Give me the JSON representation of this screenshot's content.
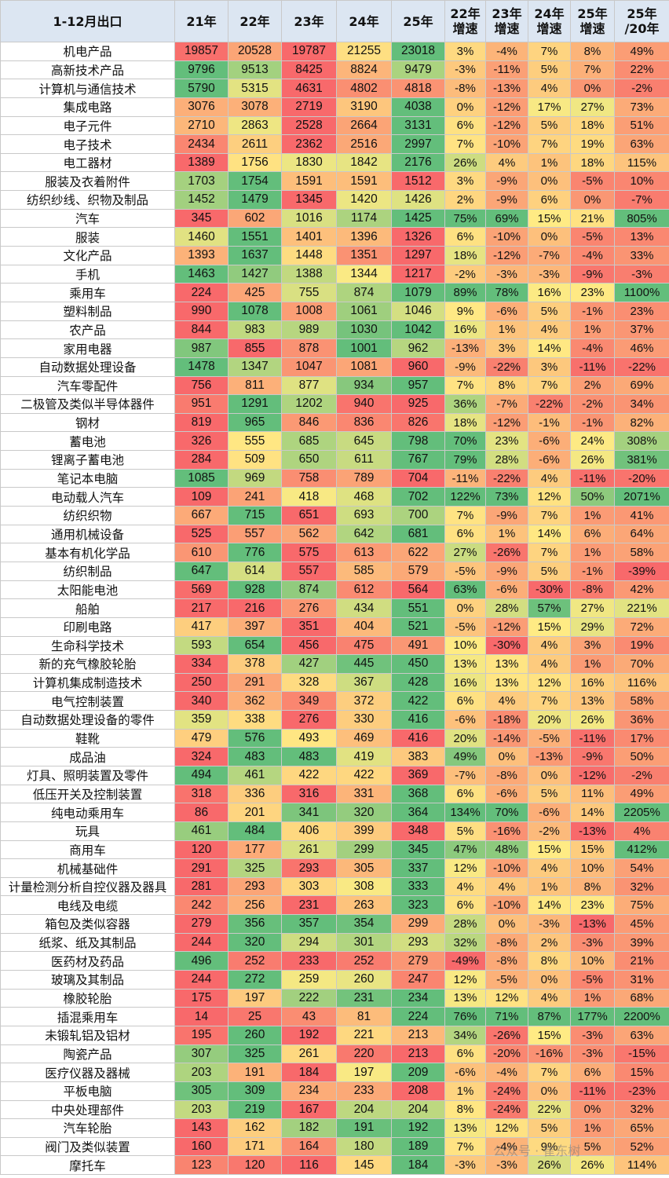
{
  "headers": [
    "1-12月出口",
    "21年",
    "22年",
    "23年",
    "24年",
    "25年",
    "22年\n增速",
    "23年\n增速",
    "24年\n增速",
    "25年\n增速",
    "25年\n/20年"
  ],
  "rows": [
    [
      "机电产品",
      "19857",
      "20528",
      "19787",
      "21255",
      "23018",
      "3%",
      "-4%",
      "7%",
      "8%",
      "49%"
    ],
    [
      "高新技术产品",
      "9796",
      "9513",
      "8425",
      "8824",
      "9479",
      "-3%",
      "-11%",
      "5%",
      "7%",
      "22%"
    ],
    [
      "计算机与通信技术",
      "5790",
      "5315",
      "4631",
      "4802",
      "4818",
      "-8%",
      "-13%",
      "4%",
      "0%",
      "-2%"
    ],
    [
      "集成电路",
      "3076",
      "3078",
      "2719",
      "3190",
      "4038",
      "0%",
      "-12%",
      "17%",
      "27%",
      "73%"
    ],
    [
      "电子元件",
      "2710",
      "2863",
      "2528",
      "2664",
      "3131",
      "6%",
      "-12%",
      "5%",
      "18%",
      "51%"
    ],
    [
      "电子技术",
      "2434",
      "2611",
      "2362",
      "2516",
      "2997",
      "7%",
      "-10%",
      "7%",
      "19%",
      "63%"
    ],
    [
      "电工器材",
      "1389",
      "1756",
      "1830",
      "1842",
      "2176",
      "26%",
      "4%",
      "1%",
      "18%",
      "115%"
    ],
    [
      "服装及衣着附件",
      "1703",
      "1754",
      "1591",
      "1591",
      "1512",
      "3%",
      "-9%",
      "0%",
      "-5%",
      "10%"
    ],
    [
      "纺织纱线、织物及制品",
      "1452",
      "1479",
      "1345",
      "1420",
      "1426",
      "2%",
      "-9%",
      "6%",
      "0%",
      "-7%"
    ],
    [
      "汽车",
      "345",
      "602",
      "1016",
      "1174",
      "1425",
      "75%",
      "69%",
      "15%",
      "21%",
      "805%"
    ],
    [
      "服装",
      "1460",
      "1551",
      "1401",
      "1396",
      "1326",
      "6%",
      "-10%",
      "0%",
      "-5%",
      "13%"
    ],
    [
      "文化产品",
      "1393",
      "1637",
      "1448",
      "1351",
      "1297",
      "18%",
      "-12%",
      "-7%",
      "-4%",
      "33%"
    ],
    [
      "手机",
      "1463",
      "1427",
      "1388",
      "1344",
      "1217",
      "-2%",
      "-3%",
      "-3%",
      "-9%",
      "-3%"
    ],
    [
      "乘用车",
      "224",
      "425",
      "755",
      "874",
      "1079",
      "89%",
      "78%",
      "16%",
      "23%",
      "1100%"
    ],
    [
      "塑料制品",
      "990",
      "1078",
      "1008",
      "1061",
      "1046",
      "9%",
      "-6%",
      "5%",
      "-1%",
      "23%"
    ],
    [
      "农产品",
      "844",
      "983",
      "989",
      "1030",
      "1042",
      "16%",
      "1%",
      "4%",
      "1%",
      "37%"
    ],
    [
      "家用电器",
      "987",
      "855",
      "878",
      "1001",
      "962",
      "-13%",
      "3%",
      "14%",
      "-4%",
      "46%"
    ],
    [
      "自动数据处理设备",
      "1478",
      "1347",
      "1047",
      "1081",
      "960",
      "-9%",
      "-22%",
      "3%",
      "-11%",
      "-22%"
    ],
    [
      "汽车零配件",
      "756",
      "811",
      "877",
      "934",
      "957",
      "7%",
      "8%",
      "7%",
      "2%",
      "69%"
    ],
    [
      "二极管及类似半导体器件",
      "951",
      "1291",
      "1202",
      "940",
      "925",
      "36%",
      "-7%",
      "-22%",
      "-2%",
      "34%"
    ],
    [
      "钢材",
      "819",
      "965",
      "846",
      "836",
      "826",
      "18%",
      "-12%",
      "-1%",
      "-1%",
      "82%"
    ],
    [
      "蓄电池",
      "326",
      "555",
      "685",
      "645",
      "798",
      "70%",
      "23%",
      "-6%",
      "24%",
      "308%"
    ],
    [
      "锂离子蓄电池",
      "284",
      "509",
      "650",
      "611",
      "767",
      "79%",
      "28%",
      "-6%",
      "26%",
      "381%"
    ],
    [
      "笔记本电脑",
      "1085",
      "969",
      "758",
      "789",
      "704",
      "-11%",
      "-22%",
      "4%",
      "-11%",
      "-20%"
    ],
    [
      "电动载人汽车",
      "109",
      "241",
      "418",
      "468",
      "702",
      "122%",
      "73%",
      "12%",
      "50%",
      "2071%"
    ],
    [
      "纺织织物",
      "667",
      "715",
      "651",
      "693",
      "700",
      "7%",
      "-9%",
      "7%",
      "1%",
      "41%"
    ],
    [
      "通用机械设备",
      "525",
      "557",
      "562",
      "642",
      "681",
      "6%",
      "1%",
      "14%",
      "6%",
      "64%"
    ],
    [
      "基本有机化学品",
      "610",
      "776",
      "575",
      "613",
      "622",
      "27%",
      "-26%",
      "7%",
      "1%",
      "58%"
    ],
    [
      "纺织制品",
      "647",
      "614",
      "557",
      "585",
      "579",
      "-5%",
      "-9%",
      "5%",
      "-1%",
      "-39%"
    ],
    [
      "太阳能电池",
      "569",
      "928",
      "874",
      "612",
      "564",
      "63%",
      "-6%",
      "-30%",
      "-8%",
      "42%"
    ],
    [
      "船舶",
      "217",
      "216",
      "276",
      "434",
      "551",
      "0%",
      "28%",
      "57%",
      "27%",
      "221%"
    ],
    [
      "印刷电路",
      "417",
      "397",
      "351",
      "404",
      "521",
      "-5%",
      "-12%",
      "15%",
      "29%",
      "72%"
    ],
    [
      "生命科学技术",
      "593",
      "654",
      "456",
      "475",
      "491",
      "10%",
      "-30%",
      "4%",
      "3%",
      "19%"
    ],
    [
      "新的充气橡胶轮胎",
      "334",
      "378",
      "427",
      "445",
      "450",
      "13%",
      "13%",
      "4%",
      "1%",
      "70%"
    ],
    [
      "计算机集成制造技术",
      "250",
      "291",
      "328",
      "367",
      "428",
      "16%",
      "13%",
      "12%",
      "16%",
      "116%"
    ],
    [
      "电气控制装置",
      "340",
      "362",
      "349",
      "372",
      "422",
      "6%",
      "4%",
      "7%",
      "13%",
      "58%"
    ],
    [
      "自动数据处理设备的零件",
      "359",
      "338",
      "276",
      "330",
      "416",
      "-6%",
      "-18%",
      "20%",
      "26%",
      "36%"
    ],
    [
      "鞋靴",
      "479",
      "576",
      "493",
      "469",
      "416",
      "20%",
      "-14%",
      "-5%",
      "-11%",
      "17%"
    ],
    [
      "成品油",
      "324",
      "483",
      "483",
      "419",
      "383",
      "49%",
      "0%",
      "-13%",
      "-9%",
      "50%"
    ],
    [
      "灯具、照明装置及零件",
      "494",
      "461",
      "422",
      "422",
      "369",
      "-7%",
      "-8%",
      "0%",
      "-12%",
      "-2%"
    ],
    [
      "低压开关及控制装置",
      "318",
      "336",
      "316",
      "331",
      "368",
      "6%",
      "-6%",
      "5%",
      "11%",
      "49%"
    ],
    [
      "纯电动乘用车",
      "86",
      "201",
      "341",
      "320",
      "364",
      "134%",
      "70%",
      "-6%",
      "14%",
      "2205%"
    ],
    [
      "玩具",
      "461",
      "484",
      "406",
      "399",
      "348",
      "5%",
      "-16%",
      "-2%",
      "-13%",
      "4%"
    ],
    [
      "商用车",
      "120",
      "177",
      "261",
      "299",
      "345",
      "47%",
      "48%",
      "15%",
      "15%",
      "412%"
    ],
    [
      "机械基础件",
      "291",
      "325",
      "293",
      "305",
      "337",
      "12%",
      "-10%",
      "4%",
      "10%",
      "54%"
    ],
    [
      "计量检测分析自控仪器及器具",
      "281",
      "293",
      "303",
      "308",
      "333",
      "4%",
      "4%",
      "1%",
      "8%",
      "32%"
    ],
    [
      "电线及电缆",
      "242",
      "256",
      "231",
      "263",
      "323",
      "6%",
      "-10%",
      "14%",
      "23%",
      "75%"
    ],
    [
      "箱包及类似容器",
      "279",
      "356",
      "357",
      "354",
      "299",
      "28%",
      "0%",
      "-3%",
      "-13%",
      "45%"
    ],
    [
      "纸浆、纸及其制品",
      "244",
      "320",
      "294",
      "301",
      "293",
      "32%",
      "-8%",
      "2%",
      "-3%",
      "39%"
    ],
    [
      "医药材及药品",
      "496",
      "252",
      "233",
      "252",
      "279",
      "-49%",
      "-8%",
      "8%",
      "10%",
      "21%"
    ],
    [
      "玻璃及其制品",
      "244",
      "272",
      "259",
      "260",
      "247",
      "12%",
      "-5%",
      "0%",
      "-5%",
      "31%"
    ],
    [
      "橡胶轮胎",
      "175",
      "197",
      "222",
      "231",
      "234",
      "13%",
      "12%",
      "4%",
      "1%",
      "68%"
    ],
    [
      "插混乘用车",
      "14",
      "25",
      "43",
      "81",
      "224",
      "76%",
      "71%",
      "87%",
      "177%",
      "2200%"
    ],
    [
      "未锻轧铝及铝材",
      "195",
      "260",
      "192",
      "221",
      "213",
      "34%",
      "-26%",
      "15%",
      "-3%",
      "63%"
    ],
    [
      "陶瓷产品",
      "307",
      "325",
      "261",
      "220",
      "213",
      "6%",
      "-20%",
      "-16%",
      "-3%",
      "-15%"
    ],
    [
      "医疗仪器及器械",
      "203",
      "191",
      "184",
      "197",
      "209",
      "-6%",
      "-4%",
      "7%",
      "6%",
      "15%"
    ],
    [
      "平板电脑",
      "305",
      "309",
      "234",
      "233",
      "208",
      "1%",
      "-24%",
      "0%",
      "-11%",
      "-23%"
    ],
    [
      "中央处理部件",
      "203",
      "219",
      "167",
      "204",
      "204",
      "8%",
      "-24%",
      "22%",
      "0%",
      "32%"
    ],
    [
      "汽车轮胎",
      "143",
      "162",
      "182",
      "191",
      "192",
      "13%",
      "12%",
      "5%",
      "1%",
      "65%"
    ],
    [
      "阀门及类似装置",
      "160",
      "171",
      "164",
      "180",
      "189",
      "7%",
      "-4%",
      "9%",
      "5%",
      "52%"
    ],
    [
      "摩托车",
      "123",
      "120",
      "116",
      "145",
      "184",
      "-3%",
      "-3%",
      "26%",
      "26%",
      "114%"
    ]
  ],
  "watermark": "公众号 · 崔东树",
  "colors": {
    "green": "#63be7b",
    "yellow": "#ffeb84",
    "red": "#f8696b",
    "header": "#dce6f2"
  }
}
